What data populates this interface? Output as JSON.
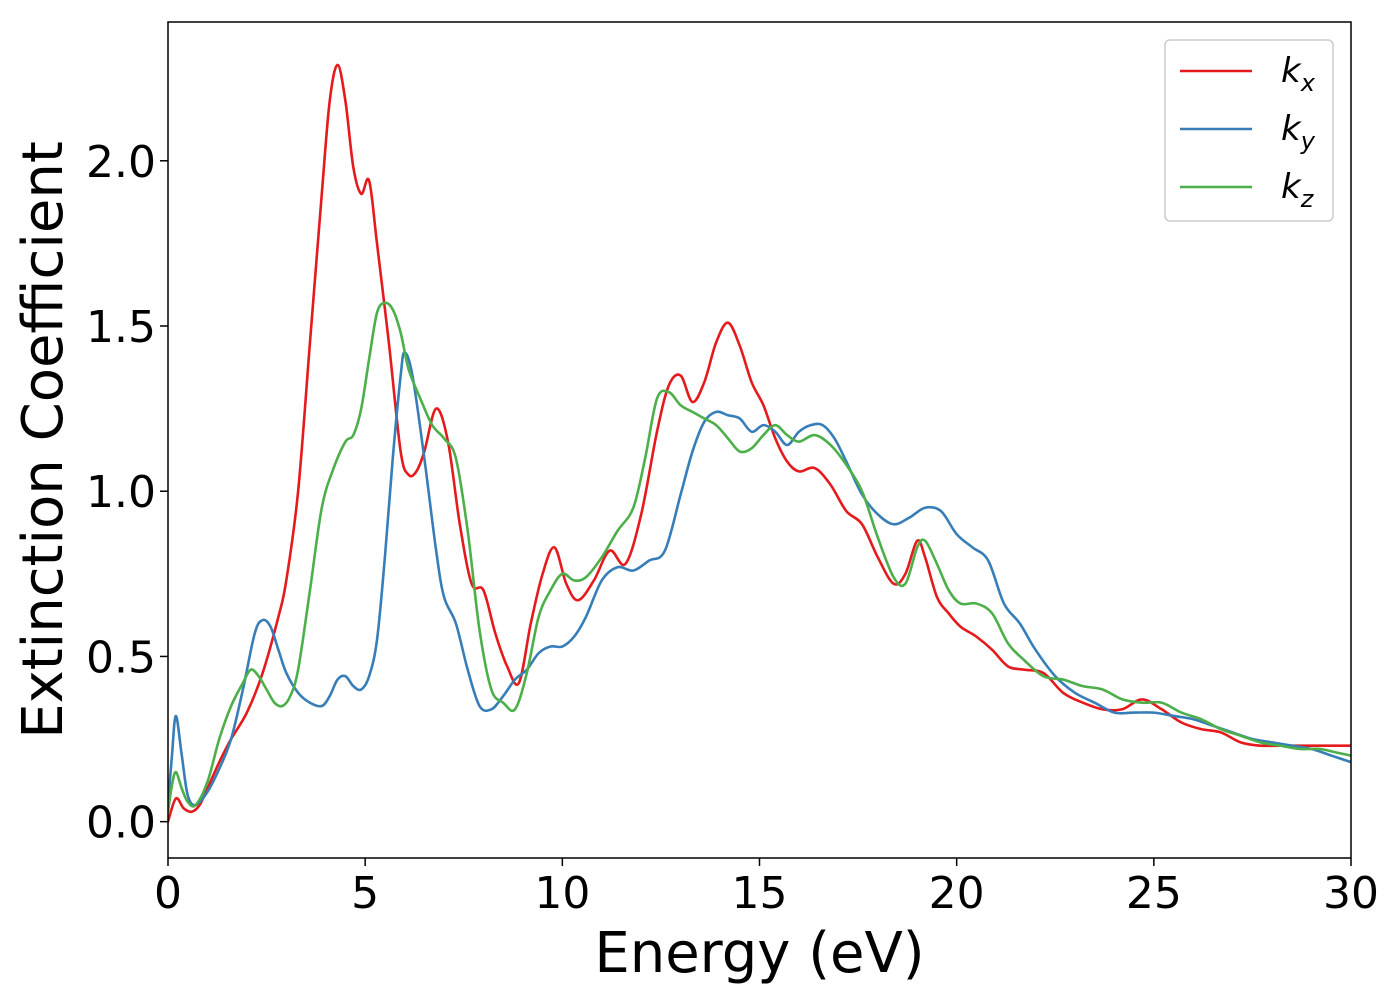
{
  "chart_data": {
    "type": "line",
    "title": "",
    "xlabel": "Energy (eV)",
    "ylabel": "Extinction Coefficient",
    "xlim": [
      0,
      30
    ],
    "ylim": [
      -0.11,
      2.42
    ],
    "xticks": [
      0,
      5,
      10,
      15,
      20,
      25,
      30
    ],
    "yticks": [
      0.0,
      0.5,
      1.0,
      1.5,
      2.0
    ],
    "xtick_labels": [
      "0",
      "5",
      "10",
      "15",
      "20",
      "25",
      "30"
    ],
    "ytick_labels": [
      "0.0",
      "0.5",
      "1.0",
      "1.5",
      "2.0"
    ],
    "grid": false,
    "legend_position": "top-right",
    "series": [
      {
        "name": "k",
        "subscript": "x",
        "color": "#e41a1c",
        "x": [
          0,
          0.2,
          0.4,
          0.6,
          0.8,
          1.0,
          1.3,
          1.6,
          2.0,
          2.4,
          2.8,
          3.0,
          3.3,
          3.6,
          3.9,
          4.1,
          4.3,
          4.5,
          4.7,
          4.9,
          5.1,
          5.3,
          5.6,
          5.9,
          6.1,
          6.3,
          6.5,
          6.8,
          7.1,
          7.4,
          7.7,
          8.0,
          8.3,
          8.6,
          8.9,
          9.2,
          9.5,
          9.8,
          10.1,
          10.4,
          10.8,
          11.2,
          11.6,
          12.0,
          12.4,
          12.7,
          13.0,
          13.3,
          13.6,
          13.9,
          14.2,
          14.5,
          14.8,
          15.1,
          15.4,
          15.7,
          16.0,
          16.4,
          16.8,
          17.2,
          17.6,
          18.0,
          18.4,
          18.7,
          19.0,
          19.2,
          19.5,
          19.8,
          20.1,
          20.5,
          20.9,
          21.3,
          21.7,
          22.2,
          22.7,
          23.2,
          23.7,
          24.2,
          24.7,
          25.2,
          25.7,
          26.2,
          26.7,
          27.2,
          27.7,
          28.2,
          28.7,
          29.2,
          29.6,
          30.0
        ],
        "values": [
          0.0,
          0.07,
          0.04,
          0.03,
          0.05,
          0.1,
          0.18,
          0.25,
          0.33,
          0.45,
          0.62,
          0.73,
          1.0,
          1.45,
          1.9,
          2.18,
          2.29,
          2.18,
          1.98,
          1.9,
          1.94,
          1.75,
          1.45,
          1.12,
          1.05,
          1.06,
          1.12,
          1.25,
          1.15,
          0.9,
          0.72,
          0.7,
          0.57,
          0.47,
          0.42,
          0.6,
          0.75,
          0.83,
          0.72,
          0.67,
          0.73,
          0.82,
          0.78,
          0.93,
          1.18,
          1.32,
          1.35,
          1.27,
          1.33,
          1.45,
          1.51,
          1.44,
          1.33,
          1.26,
          1.16,
          1.09,
          1.06,
          1.07,
          1.02,
          0.94,
          0.9,
          0.8,
          0.72,
          0.75,
          0.85,
          0.8,
          0.68,
          0.63,
          0.59,
          0.56,
          0.52,
          0.47,
          0.46,
          0.45,
          0.39,
          0.36,
          0.34,
          0.34,
          0.37,
          0.34,
          0.3,
          0.28,
          0.27,
          0.24,
          0.23,
          0.23,
          0.23,
          0.23,
          0.23,
          0.23
        ]
      },
      {
        "name": "k",
        "subscript": "y",
        "color": "#377eb8",
        "x": [
          0,
          0.1,
          0.2,
          0.35,
          0.5,
          0.7,
          1.0,
          1.3,
          1.6,
          1.9,
          2.2,
          2.4,
          2.6,
          2.8,
          3.0,
          3.3,
          3.6,
          3.9,
          4.1,
          4.3,
          4.5,
          4.7,
          4.9,
          5.1,
          5.3,
          5.5,
          5.7,
          5.9,
          6.0,
          6.2,
          6.5,
          6.8,
          7.0,
          7.3,
          7.6,
          7.9,
          8.2,
          8.5,
          8.8,
          9.1,
          9.4,
          9.7,
          10.0,
          10.3,
          10.6,
          11.0,
          11.4,
          11.8,
          12.2,
          12.6,
          13.0,
          13.3,
          13.6,
          13.9,
          14.2,
          14.5,
          14.8,
          15.1,
          15.4,
          15.7,
          16.0,
          16.3,
          16.6,
          16.9,
          17.2,
          17.6,
          18.0,
          18.4,
          18.8,
          19.2,
          19.6,
          20.0,
          20.4,
          20.8,
          21.2,
          21.6,
          22.0,
          22.5,
          23.0,
          23.5,
          24.0,
          24.5,
          25.0,
          25.5,
          26.0,
          26.5,
          27.0,
          27.5,
          28.0,
          28.5,
          29.0,
          29.5,
          30.0
        ],
        "values": [
          0.05,
          0.2,
          0.32,
          0.2,
          0.08,
          0.05,
          0.09,
          0.16,
          0.25,
          0.4,
          0.57,
          0.61,
          0.59,
          0.52,
          0.45,
          0.39,
          0.36,
          0.35,
          0.38,
          0.43,
          0.44,
          0.41,
          0.4,
          0.44,
          0.55,
          0.8,
          1.1,
          1.35,
          1.42,
          1.35,
          1.1,
          0.82,
          0.68,
          0.6,
          0.46,
          0.35,
          0.34,
          0.38,
          0.43,
          0.46,
          0.51,
          0.53,
          0.53,
          0.56,
          0.62,
          0.73,
          0.77,
          0.76,
          0.79,
          0.82,
          0.99,
          1.12,
          1.21,
          1.24,
          1.23,
          1.22,
          1.18,
          1.2,
          1.18,
          1.14,
          1.18,
          1.2,
          1.2,
          1.16,
          1.09,
          0.99,
          0.93,
          0.9,
          0.92,
          0.95,
          0.94,
          0.87,
          0.83,
          0.79,
          0.66,
          0.6,
          0.52,
          0.44,
          0.39,
          0.36,
          0.33,
          0.33,
          0.33,
          0.32,
          0.31,
          0.29,
          0.27,
          0.25,
          0.24,
          0.23,
          0.22,
          0.2,
          0.18
        ]
      },
      {
        "name": "k",
        "subscript": "z",
        "color": "#4daf4a",
        "x": [
          0,
          0.1,
          0.2,
          0.35,
          0.5,
          0.7,
          1.0,
          1.3,
          1.6,
          1.9,
          2.1,
          2.3,
          2.5,
          2.7,
          2.9,
          3.1,
          3.3,
          3.6,
          3.9,
          4.2,
          4.5,
          4.7,
          4.9,
          5.1,
          5.3,
          5.5,
          5.7,
          5.9,
          6.1,
          6.4,
          6.7,
          7.0,
          7.3,
          7.6,
          7.9,
          8.2,
          8.5,
          8.8,
          9.1,
          9.4,
          9.7,
          10.0,
          10.3,
          10.6,
          11.0,
          11.4,
          11.8,
          12.1,
          12.4,
          12.7,
          13.0,
          13.3,
          13.6,
          13.9,
          14.2,
          14.5,
          14.8,
          15.1,
          15.4,
          15.7,
          16.0,
          16.4,
          16.8,
          17.2,
          17.6,
          18.0,
          18.4,
          18.7,
          19.0,
          19.2,
          19.5,
          19.8,
          20.1,
          20.5,
          20.9,
          21.3,
          21.7,
          22.2,
          22.7,
          23.2,
          23.7,
          24.2,
          24.7,
          25.2,
          25.7,
          26.2,
          26.7,
          27.2,
          27.7,
          28.2,
          28.7,
          29.2,
          29.6,
          30.0
        ],
        "values": [
          0.03,
          0.11,
          0.15,
          0.1,
          0.06,
          0.05,
          0.12,
          0.25,
          0.35,
          0.42,
          0.46,
          0.44,
          0.4,
          0.36,
          0.35,
          0.38,
          0.46,
          0.7,
          0.95,
          1.07,
          1.15,
          1.17,
          1.25,
          1.4,
          1.54,
          1.57,
          1.55,
          1.48,
          1.37,
          1.28,
          1.2,
          1.16,
          1.1,
          0.88,
          0.58,
          0.4,
          0.36,
          0.34,
          0.45,
          0.62,
          0.7,
          0.75,
          0.73,
          0.74,
          0.8,
          0.88,
          0.95,
          1.1,
          1.28,
          1.3,
          1.26,
          1.24,
          1.22,
          1.2,
          1.16,
          1.12,
          1.13,
          1.17,
          1.2,
          1.17,
          1.15,
          1.17,
          1.14,
          1.08,
          1.0,
          0.86,
          0.74,
          0.72,
          0.83,
          0.85,
          0.78,
          0.7,
          0.66,
          0.66,
          0.63,
          0.54,
          0.49,
          0.44,
          0.43,
          0.41,
          0.4,
          0.37,
          0.36,
          0.36,
          0.33,
          0.31,
          0.28,
          0.26,
          0.24,
          0.23,
          0.22,
          0.22,
          0.21,
          0.2
        ]
      }
    ]
  }
}
